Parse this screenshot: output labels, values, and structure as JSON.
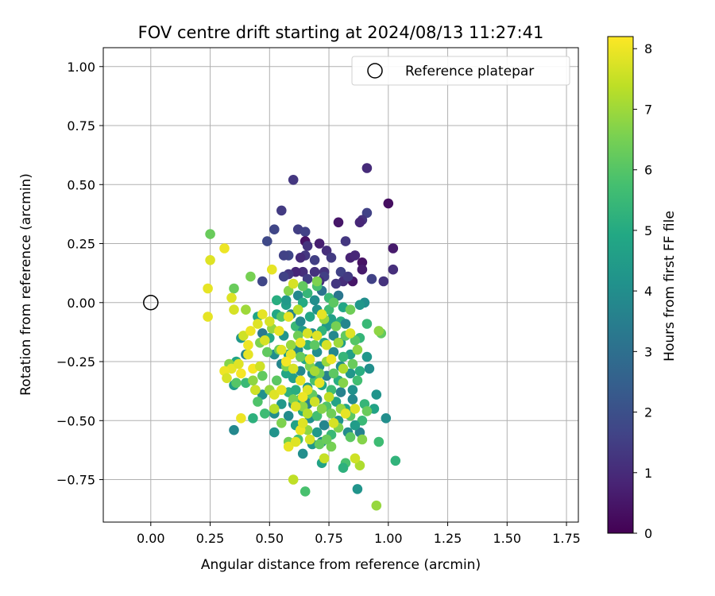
{
  "chart_data": {
    "type": "scatter",
    "title": "FOV centre drift starting at 2024/08/13 11:27:41",
    "xlabel": "Angular distance from reference (arcmin)",
    "ylabel": "Rotation from reference (arcmin)",
    "xlim": [
      -0.2,
      1.8
    ],
    "ylim": [
      -0.93,
      1.08
    ],
    "x_ticks": [
      0.0,
      0.25,
      0.5,
      0.75,
      1.0,
      1.25,
      1.5,
      1.75
    ],
    "x_tick_labels": [
      "0.00",
      "0.25",
      "0.50",
      "0.75",
      "1.00",
      "1.25",
      "1.50",
      "1.75"
    ],
    "y_ticks": [
      -0.75,
      -0.5,
      -0.25,
      0.0,
      0.25,
      0.5,
      0.75,
      1.0
    ],
    "y_tick_labels": [
      "−0.75",
      "−0.50",
      "−0.25",
      "0.00",
      "0.25",
      "0.50",
      "0.75",
      "1.00"
    ],
    "grid": true,
    "legend": {
      "position": "top-right",
      "entries": [
        "Reference platepar"
      ]
    },
    "reference_point": {
      "x": 0.0,
      "y": 0.0,
      "label": "Reference platepar"
    },
    "colorbar": {
      "label": "Hours from first FF file",
      "colormap": "viridis",
      "range": [
        0,
        8.2
      ],
      "ticks": [
        0,
        1,
        2,
        3,
        4,
        5,
        6,
        7,
        8
      ],
      "tick_labels": [
        "0",
        "1",
        "2",
        "3",
        "4",
        "5",
        "6",
        "7",
        "8"
      ]
    },
    "points": [
      [
        0.91,
        0.57,
        1.0
      ],
      [
        0.6,
        0.52,
        1.3
      ],
      [
        1.0,
        0.42,
        0.3
      ],
      [
        0.55,
        0.39,
        1.4
      ],
      [
        0.91,
        0.38,
        1.6
      ],
      [
        0.89,
        0.35,
        1.2
      ],
      [
        0.88,
        0.34,
        0.9
      ],
      [
        0.79,
        0.34,
        0.5
      ],
      [
        0.62,
        0.31,
        1.5
      ],
      [
        0.52,
        0.31,
        1.7
      ],
      [
        0.65,
        0.3,
        1.6
      ],
      [
        0.65,
        0.26,
        0.4
      ],
      [
        0.71,
        0.25,
        0.7
      ],
      [
        0.66,
        0.24,
        1.2
      ],
      [
        0.49,
        0.26,
        1.8
      ],
      [
        0.82,
        0.26,
        1.3
      ],
      [
        1.02,
        0.23,
        0.6
      ],
      [
        0.74,
        0.22,
        1.1
      ],
      [
        0.58,
        0.2,
        1.7
      ],
      [
        0.56,
        0.2,
        1.6
      ],
      [
        0.65,
        0.2,
        1.3
      ],
      [
        0.63,
        0.19,
        1.0
      ],
      [
        0.69,
        0.18,
        1.5
      ],
      [
        0.73,
        0.13,
        1.2
      ],
      [
        0.76,
        0.19,
        1.4
      ],
      [
        0.84,
        0.19,
        0.8
      ],
      [
        0.86,
        0.2,
        0.9
      ],
      [
        0.89,
        0.17,
        0.4
      ],
      [
        0.89,
        0.14,
        0.6
      ],
      [
        0.8,
        0.13,
        1.6
      ],
      [
        1.02,
        0.14,
        1.1
      ],
      [
        0.93,
        0.1,
        1.6
      ],
      [
        0.98,
        0.09,
        1.2
      ],
      [
        0.85,
        0.09,
        0.5
      ],
      [
        0.81,
        0.09,
        1.1
      ],
      [
        0.73,
        0.11,
        1.5
      ],
      [
        0.69,
        0.13,
        1.2
      ],
      [
        0.64,
        0.13,
        1.1
      ],
      [
        0.61,
        0.13,
        0.9
      ],
      [
        0.58,
        0.12,
        1.3
      ],
      [
        0.56,
        0.11,
        1.6
      ],
      [
        0.47,
        0.09,
        1.7
      ],
      [
        0.66,
        0.1,
        1.5
      ],
      [
        0.71,
        0.09,
        1.1
      ],
      [
        0.78,
        0.08,
        1.3
      ],
      [
        0.83,
        0.11,
        1.4
      ],
      [
        0.9,
        0.0,
        4.0
      ],
      [
        0.88,
        -0.01,
        4.3
      ],
      [
        0.79,
        0.03,
        3.2
      ],
      [
        0.72,
        0.05,
        3.1
      ],
      [
        0.69,
        0.01,
        4.0
      ],
      [
        0.62,
        0.03,
        3.8
      ],
      [
        0.57,
        -0.01,
        4.6
      ],
      [
        0.53,
        0.01,
        5.1
      ],
      [
        0.7,
        0.07,
        5.8
      ],
      [
        0.66,
        0.04,
        5.4
      ],
      [
        0.64,
        0.0,
        5.0
      ],
      [
        0.75,
        -0.03,
        5.6
      ],
      [
        0.8,
        -0.08,
        5.1
      ],
      [
        0.91,
        -0.09,
        5.5
      ],
      [
        0.88,
        -0.15,
        5.4
      ],
      [
        0.97,
        -0.13,
        6.2
      ],
      [
        0.86,
        -0.16,
        6.0
      ],
      [
        0.91,
        -0.23,
        4.3
      ],
      [
        0.92,
        -0.28,
        4.0
      ],
      [
        0.88,
        -0.29,
        5.1
      ],
      [
        0.95,
        -0.39,
        4.2
      ],
      [
        0.94,
        -0.45,
        4.7
      ],
      [
        0.9,
        -0.43,
        5.4
      ],
      [
        0.89,
        -0.5,
        5.5
      ],
      [
        0.99,
        -0.49,
        4.0
      ],
      [
        1.03,
        -0.67,
        5.3
      ],
      [
        0.96,
        -0.59,
        5.6
      ],
      [
        0.88,
        -0.55,
        3.6
      ],
      [
        0.87,
        -0.79,
        4.2
      ],
      [
        0.95,
        -0.86,
        6.9
      ],
      [
        0.88,
        -0.69,
        7.2
      ],
      [
        0.82,
        -0.68,
        5.8
      ],
      [
        0.81,
        -0.7,
        5.2
      ],
      [
        0.73,
        -0.66,
        6.7
      ],
      [
        0.72,
        -0.68,
        4.7
      ],
      [
        0.65,
        -0.8,
        5.8
      ],
      [
        0.6,
        -0.75,
        7.4
      ],
      [
        0.64,
        -0.64,
        4.0
      ],
      [
        0.62,
        -0.58,
        5.7
      ],
      [
        0.52,
        -0.55,
        4.2
      ],
      [
        0.52,
        -0.47,
        4.0
      ],
      [
        0.48,
        -0.47,
        5.6
      ],
      [
        0.47,
        -0.39,
        4.1
      ],
      [
        0.44,
        -0.37,
        4.7
      ],
      [
        0.4,
        -0.34,
        5.5
      ],
      [
        0.35,
        -0.35,
        4.5
      ],
      [
        0.35,
        -0.54,
        3.8
      ],
      [
        0.43,
        -0.49,
        5.2
      ],
      [
        0.36,
        -0.25,
        4.8
      ],
      [
        0.4,
        -0.22,
        3.7
      ],
      [
        0.38,
        -0.15,
        4.3
      ],
      [
        0.47,
        -0.13,
        3.3
      ],
      [
        0.5,
        -0.15,
        4.9
      ],
      [
        0.45,
        -0.06,
        4.8
      ],
      [
        0.53,
        -0.05,
        4.9
      ],
      [
        0.52,
        -0.22,
        4.0
      ],
      [
        0.56,
        -0.14,
        4.2
      ],
      [
        0.59,
        -0.05,
        3.6
      ],
      [
        0.61,
        -0.1,
        5.5
      ],
      [
        0.64,
        -0.12,
        4.4
      ],
      [
        0.67,
        -0.06,
        4.9
      ],
      [
        0.7,
        -0.03,
        4.1
      ],
      [
        0.74,
        -0.1,
        4.4
      ],
      [
        0.77,
        -0.14,
        3.8
      ],
      [
        0.8,
        -0.17,
        4.5
      ],
      [
        0.82,
        -0.09,
        3.7
      ],
      [
        0.84,
        -0.22,
        4.6
      ],
      [
        0.8,
        -0.27,
        4.0
      ],
      [
        0.79,
        -0.33,
        5.1
      ],
      [
        0.76,
        -0.37,
        5.6
      ],
      [
        0.74,
        -0.31,
        3.6
      ],
      [
        0.71,
        -0.27,
        4.1
      ],
      [
        0.69,
        -0.33,
        5.8
      ],
      [
        0.66,
        -0.36,
        4.4
      ],
      [
        0.63,
        -0.29,
        3.8
      ],
      [
        0.6,
        -0.32,
        4.6
      ],
      [
        0.58,
        -0.38,
        5.2
      ],
      [
        0.55,
        -0.43,
        4.3
      ],
      [
        0.58,
        -0.48,
        3.9
      ],
      [
        0.61,
        -0.52,
        4.7
      ],
      [
        0.64,
        -0.46,
        5.0
      ],
      [
        0.67,
        -0.49,
        4.1
      ],
      [
        0.7,
        -0.55,
        4.4
      ],
      [
        0.73,
        -0.52,
        3.7
      ],
      [
        0.76,
        -0.56,
        5.5
      ],
      [
        0.79,
        -0.5,
        4.2
      ],
      [
        0.82,
        -0.45,
        4.9
      ],
      [
        0.85,
        -0.41,
        3.8
      ],
      [
        0.86,
        -0.52,
        4.5
      ],
      [
        0.83,
        -0.55,
        3.9
      ],
      [
        0.78,
        -0.42,
        4.7
      ],
      [
        0.74,
        -0.44,
        5.9
      ],
      [
        0.7,
        -0.41,
        3.5
      ],
      [
        0.67,
        -0.4,
        4.8
      ],
      [
        0.63,
        -0.41,
        5.4
      ],
      [
        0.6,
        -0.43,
        3.9
      ],
      [
        0.57,
        -0.3,
        4.9
      ],
      [
        0.55,
        -0.26,
        3.7
      ],
      [
        0.58,
        -0.22,
        4.5
      ],
      [
        0.62,
        -0.2,
        3.9
      ],
      [
        0.66,
        -0.18,
        5.2
      ],
      [
        0.7,
        -0.21,
        4.0
      ],
      [
        0.73,
        -0.17,
        4.7
      ],
      [
        0.77,
        -0.21,
        3.8
      ],
      [
        0.81,
        -0.23,
        5.4
      ],
      [
        0.84,
        -0.3,
        4.3
      ],
      [
        0.87,
        -0.33,
        5.7
      ],
      [
        0.85,
        -0.37,
        4.1
      ],
      [
        0.8,
        -0.38,
        3.6
      ],
      [
        0.72,
        -0.35,
        4.9
      ],
      [
        0.68,
        -0.3,
        4.2
      ],
      [
        0.65,
        -0.24,
        5.0
      ],
      [
        0.68,
        -0.13,
        3.9
      ],
      [
        0.72,
        -0.12,
        5.3
      ],
      [
        0.76,
        -0.07,
        4.6
      ],
      [
        0.63,
        -0.08,
        3.8
      ],
      [
        0.57,
        0.01,
        4.4
      ],
      [
        0.75,
        0.02,
        5.5
      ],
      [
        0.81,
        -0.02,
        4.8
      ],
      [
        0.66,
        -0.43,
        3.6
      ],
      [
        0.7,
        -0.48,
        5.7
      ],
      [
        0.61,
        -0.37,
        5.1
      ],
      [
        0.72,
        -0.59,
        3.9
      ],
      [
        0.68,
        -0.6,
        4.3
      ],
      [
        0.35,
        0.06,
        6.3
      ],
      [
        0.25,
        0.29,
        6.3
      ],
      [
        0.42,
        0.11,
        6.5
      ],
      [
        0.4,
        -0.03,
        7.0
      ],
      [
        0.33,
        -0.26,
        6.7
      ],
      [
        0.36,
        -0.34,
        6.0
      ],
      [
        0.43,
        -0.33,
        6.8
      ],
      [
        0.45,
        -0.42,
        5.9
      ],
      [
        0.47,
        -0.31,
        6.2
      ],
      [
        0.5,
        -0.37,
        6.9
      ],
      [
        0.53,
        -0.33,
        6.1
      ],
      [
        0.55,
        -0.51,
        6.6
      ],
      [
        0.58,
        -0.59,
        6.4
      ],
      [
        0.66,
        -0.54,
        6.8
      ],
      [
        0.71,
        -0.6,
        6.2
      ],
      [
        0.76,
        -0.61,
        6.5
      ],
      [
        0.84,
        -0.57,
        6.1
      ],
      [
        0.89,
        -0.58,
        6.7
      ],
      [
        0.91,
        -0.46,
        6.3
      ],
      [
        0.96,
        -0.12,
        6.8
      ],
      [
        0.84,
        -0.03,
        6.4
      ],
      [
        0.77,
        0.0,
        6.1
      ],
      [
        0.7,
        0.09,
        6.6
      ],
      [
        0.64,
        0.07,
        6.2
      ],
      [
        0.58,
        0.05,
        6.7
      ],
      [
        0.55,
        -0.06,
        6.0
      ],
      [
        0.59,
        -0.18,
        6.9
      ],
      [
        0.63,
        -0.23,
        6.3
      ],
      [
        0.67,
        -0.27,
        6.6
      ],
      [
        0.71,
        -0.3,
        6.4
      ],
      [
        0.74,
        -0.25,
        6.9
      ],
      [
        0.77,
        -0.3,
        6.1
      ],
      [
        0.81,
        -0.34,
        6.7
      ],
      [
        0.85,
        -0.26,
        6.3
      ],
      [
        0.87,
        -0.2,
        6.8
      ],
      [
        0.82,
        -0.14,
        6.2
      ],
      [
        0.78,
        -0.1,
        6.5
      ],
      [
        0.73,
        -0.07,
        6.9
      ],
      [
        0.69,
        -0.18,
        6.1
      ],
      [
        0.62,
        -0.14,
        6.4
      ],
      [
        0.57,
        -0.27,
        6.6
      ],
      [
        0.54,
        -0.2,
        6.3
      ],
      [
        0.51,
        -0.11,
        6.9
      ],
      [
        0.49,
        -0.21,
        6.2
      ],
      [
        0.46,
        -0.17,
        6.6
      ],
      [
        0.6,
        -0.41,
        6.5
      ],
      [
        0.64,
        -0.44,
        6.8
      ],
      [
        0.68,
        -0.39,
        6.2
      ],
      [
        0.72,
        -0.45,
        6.7
      ],
      [
        0.76,
        -0.47,
        6.4
      ],
      [
        0.8,
        -0.45,
        6.9
      ],
      [
        0.84,
        -0.48,
        6.1
      ],
      [
        0.79,
        -0.53,
        6.6
      ],
      [
        0.74,
        -0.58,
        6.3
      ],
      [
        0.24,
        0.06,
        7.9
      ],
      [
        0.25,
        0.18,
        7.8
      ],
      [
        0.31,
        0.23,
        8.0
      ],
      [
        0.51,
        0.14,
        7.9
      ],
      [
        0.24,
        -0.06,
        7.9
      ],
      [
        0.34,
        0.02,
        7.8
      ],
      [
        0.35,
        -0.03,
        7.7
      ],
      [
        0.39,
        -0.14,
        7.6
      ],
      [
        0.42,
        -0.12,
        8.0
      ],
      [
        0.45,
        -0.09,
        7.8
      ],
      [
        0.47,
        -0.05,
        7.9
      ],
      [
        0.5,
        -0.08,
        7.7
      ],
      [
        0.58,
        -0.06,
        7.9
      ],
      [
        0.6,
        0.08,
        7.7
      ],
      [
        0.41,
        -0.18,
        8.0
      ],
      [
        0.41,
        -0.22,
        7.9
      ],
      [
        0.43,
        -0.28,
        8.1
      ],
      [
        0.46,
        -0.27,
        7.6
      ],
      [
        0.38,
        -0.3,
        8.1
      ],
      [
        0.34,
        -0.28,
        7.9
      ],
      [
        0.31,
        -0.29,
        8.0
      ],
      [
        0.32,
        -0.32,
        7.7
      ],
      [
        0.37,
        -0.26,
        7.8
      ],
      [
        0.44,
        -0.37,
        7.6
      ],
      [
        0.38,
        -0.49,
        8.0
      ],
      [
        0.52,
        -0.39,
        7.8
      ],
      [
        0.52,
        -0.45,
        7.3
      ],
      [
        0.55,
        -0.37,
        7.9
      ],
      [
        0.58,
        -0.61,
        7.9
      ],
      [
        0.61,
        -0.59,
        7.8
      ],
      [
        0.63,
        -0.54,
        8.0
      ],
      [
        0.67,
        -0.58,
        7.7
      ],
      [
        0.73,
        -0.66,
        7.5
      ],
      [
        0.86,
        -0.66,
        7.6
      ],
      [
        0.82,
        -0.47,
        7.9
      ],
      [
        0.86,
        -0.45,
        7.8
      ],
      [
        0.84,
        -0.13,
        7.8
      ],
      [
        0.72,
        -0.05,
        7.9
      ],
      [
        0.66,
        -0.13,
        7.7
      ],
      [
        0.63,
        -0.17,
        8.0
      ],
      [
        0.59,
        -0.22,
        7.9
      ],
      [
        0.55,
        -0.2,
        7.8
      ],
      [
        0.57,
        -0.25,
        8.1
      ],
      [
        0.6,
        -0.28,
        7.7
      ],
      [
        0.63,
        -0.33,
        7.9
      ],
      [
        0.66,
        -0.37,
        7.8
      ],
      [
        0.69,
        -0.42,
        7.6
      ],
      [
        0.64,
        -0.4,
        8.0
      ],
      [
        0.61,
        -0.44,
        7.8
      ],
      [
        0.67,
        -0.24,
        7.9
      ],
      [
        0.7,
        -0.14,
        7.8
      ],
      [
        0.74,
        -0.18,
        7.7
      ],
      [
        0.76,
        -0.24,
        8.0
      ],
      [
        0.71,
        -0.34,
        7.9
      ],
      [
        0.77,
        -0.51,
        7.7
      ],
      [
        0.64,
        -0.51,
        7.8
      ],
      [
        0.48,
        -0.16,
        7.7
      ],
      [
        0.54,
        -0.12,
        7.9
      ],
      [
        0.66,
        -0.47,
        7.3
      ],
      [
        0.75,
        -0.4,
        7.4
      ],
      [
        0.69,
        -0.29,
        7.1
      ],
      [
        0.81,
        -0.28,
        7.2
      ],
      [
        0.79,
        -0.17,
        7.0
      ],
      [
        0.62,
        -0.03,
        7.3
      ]
    ]
  }
}
